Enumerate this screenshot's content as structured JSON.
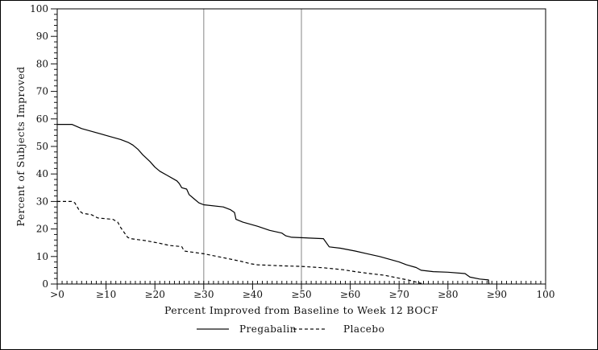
{
  "figure": {
    "background_color": "#ffffff",
    "frame_color": "#000000"
  },
  "chart_data": {
    "type": "line",
    "title": "",
    "xlabel": "Percent Improved from Baseline to Week 12 BOCF",
    "ylabel": "Percent of Subjects Improved",
    "xlim": [
      0,
      100
    ],
    "ylim": [
      0,
      100
    ],
    "grid": false,
    "legend_position": "bottom",
    "x_tick_values": [
      0,
      10,
      20,
      30,
      40,
      50,
      60,
      70,
      80,
      90,
      100
    ],
    "x_tick_labels": [
      ">0",
      "≥10",
      "≥20",
      "≥30",
      "≥40",
      "≥50",
      "≥60",
      "≥70",
      "≥80",
      "≥90",
      "100"
    ],
    "y_tick_values": [
      0,
      10,
      20,
      30,
      40,
      50,
      60,
      70,
      80,
      90,
      100
    ],
    "y_tick_labels": [
      "0",
      "10",
      "20",
      "30",
      "40",
      "50",
      "60",
      "70",
      "80",
      "90",
      "100"
    ],
    "x_minor_step": 1,
    "y_minor_step": 2,
    "reference_lines_x": [
      30,
      50
    ],
    "reference_line_color": "#999999",
    "curve_color": "#000000",
    "series": [
      {
        "name": "Pregabalin",
        "style": "solid",
        "points": [
          [
            0,
            58
          ],
          [
            3,
            58
          ],
          [
            5,
            56.5
          ],
          [
            7,
            55.5
          ],
          [
            10,
            54
          ],
          [
            13,
            52.5
          ],
          [
            14.5,
            51.5
          ],
          [
            15.5,
            50.5
          ],
          [
            16.5,
            49
          ],
          [
            17.5,
            47
          ],
          [
            19,
            44.5
          ],
          [
            20,
            42.5
          ],
          [
            21,
            41
          ],
          [
            22.5,
            39.5
          ],
          [
            24.5,
            37.5
          ],
          [
            25,
            36.5
          ],
          [
            25.5,
            35
          ],
          [
            26.5,
            34.5
          ],
          [
            27,
            32.5
          ],
          [
            28,
            31
          ],
          [
            29,
            29.5
          ],
          [
            30,
            28.8
          ],
          [
            34,
            28
          ],
          [
            35.5,
            27
          ],
          [
            36.3,
            26
          ],
          [
            36.6,
            23.5
          ],
          [
            38,
            22.5
          ],
          [
            41,
            21
          ],
          [
            43.5,
            19.5
          ],
          [
            46,
            18.5
          ],
          [
            46.8,
            17.5
          ],
          [
            48,
            17
          ],
          [
            54.5,
            16.5
          ],
          [
            55.7,
            13.5
          ],
          [
            58,
            13
          ],
          [
            61,
            12
          ],
          [
            63.5,
            11
          ],
          [
            66,
            10
          ],
          [
            68,
            9
          ],
          [
            70,
            8
          ],
          [
            71.5,
            7
          ],
          [
            73.5,
            6
          ],
          [
            74.5,
            5
          ],
          [
            77,
            4.5
          ],
          [
            80,
            4.3
          ],
          [
            83.5,
            3.8
          ],
          [
            84.5,
            2.5
          ],
          [
            86.5,
            1.8
          ],
          [
            88.3,
            1.5
          ],
          [
            88.4,
            0
          ]
        ]
      },
      {
        "name": "Placebo",
        "style": "dashed",
        "points": [
          [
            0,
            30
          ],
          [
            3,
            30
          ],
          [
            3.6,
            29.5
          ],
          [
            4.6,
            26.5
          ],
          [
            5.2,
            25.7
          ],
          [
            7,
            25.2
          ],
          [
            8.3,
            24
          ],
          [
            11.4,
            23.5
          ],
          [
            12.4,
            22.5
          ],
          [
            13,
            20.5
          ],
          [
            13.6,
            19
          ],
          [
            14.4,
            17
          ],
          [
            15,
            16.5
          ],
          [
            18,
            15.8
          ],
          [
            21,
            14.8
          ],
          [
            23,
            14
          ],
          [
            25.5,
            13.6
          ],
          [
            26,
            12
          ],
          [
            28,
            11.5
          ],
          [
            30,
            11
          ],
          [
            32,
            10.3
          ],
          [
            35,
            9.2
          ],
          [
            37.5,
            8.3
          ],
          [
            39.5,
            7.4
          ],
          [
            41,
            7
          ],
          [
            46,
            6.6
          ],
          [
            50,
            6.4
          ],
          [
            54.5,
            5.9
          ],
          [
            58.5,
            5.2
          ],
          [
            61,
            4.5
          ],
          [
            64,
            3.8
          ],
          [
            67,
            3.2
          ],
          [
            70,
            2.1
          ],
          [
            72,
            1.4
          ],
          [
            74.6,
            0.2
          ]
        ]
      }
    ]
  }
}
